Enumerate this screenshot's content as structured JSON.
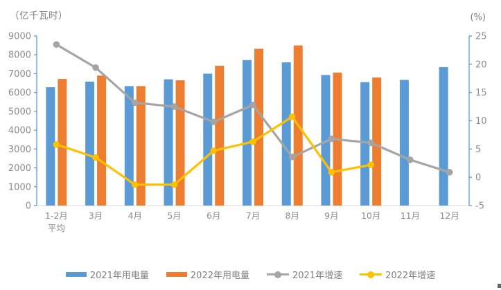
{
  "chart_data": {
    "type": "combo_bar_line",
    "title": "",
    "left_axis": {
      "unit_label": "（亿千瓦时）",
      "min": 0,
      "max": 9000,
      "step": 1000,
      "tick_labels": [
        "0",
        "1000",
        "2000",
        "3000",
        "4000",
        "5000",
        "6000",
        "7000",
        "8000",
        "9000"
      ]
    },
    "right_axis": {
      "unit_label": "(%)",
      "min": -5,
      "max": 25,
      "step": 5,
      "tick_labels": [
        "-5",
        "0",
        "5",
        "10",
        "15",
        "20",
        "25"
      ]
    },
    "categories": [
      "1-2月\n平均",
      "3月",
      "4月",
      "5月",
      "6月",
      "7月",
      "8月",
      "9月",
      "10月",
      "11月",
      "12月"
    ],
    "series": [
      {
        "name": "2021年用电量",
        "type": "bar",
        "axis": "left",
        "color": "#5B9BD5",
        "values": [
          6280,
          6580,
          6340,
          6700,
          7000,
          7720,
          7600,
          6930,
          6550,
          6670,
          7350
        ]
      },
      {
        "name": "2022年用电量",
        "type": "bar",
        "axis": "left",
        "color": "#ED7D31",
        "values": [
          6720,
          6900,
          6340,
          6650,
          7420,
          8320,
          8500,
          7060,
          6800,
          null,
          null
        ]
      },
      {
        "name": "2021年增速",
        "type": "line",
        "axis": "right",
        "color": "#A5A5A5",
        "values": [
          23.5,
          19.4,
          13.2,
          12.5,
          9.8,
          12.8,
          3.6,
          6.8,
          6.1,
          3.1,
          0.9
        ]
      },
      {
        "name": "2022年增速",
        "type": "line",
        "axis": "right",
        "color": "#FFC000",
        "values": [
          5.8,
          3.5,
          -1.3,
          -1.3,
          4.7,
          6.3,
          10.7,
          0.9,
          2.2,
          null,
          null
        ]
      }
    ],
    "legend": {
      "position": "bottom"
    },
    "grid": false,
    "styles": {
      "background": "#FFFFFF",
      "value_axis_line_color": "#5B9BD5",
      "category_axis_line_color": "#D9D9D9",
      "tick_label_color": "#8C8C8C",
      "unit_label_color": "#7F7F7F",
      "legend_text_color": "#7F7F7F"
    }
  }
}
